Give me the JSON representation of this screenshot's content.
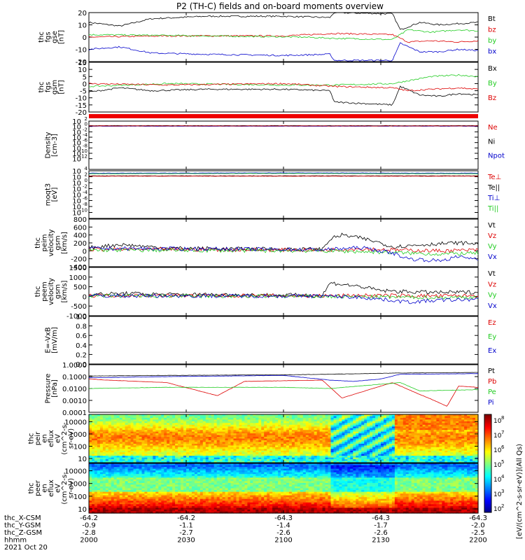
{
  "title": "P2 (TH-C) fields and on-board moments overview",
  "colors": {
    "black": "#000000",
    "red": "#dd0000",
    "green": "#22cc22",
    "blue": "#0000cc",
    "bar": "#ee0000"
  },
  "chart_data": [
    {
      "type": "line",
      "ylabel": "thc\nfgs\ngse\n[nT]",
      "ylim": [
        -20,
        20
      ],
      "ticks": [
        "20",
        "10",
        "0",
        "-10",
        "-20"
      ],
      "tick_values": [
        20,
        10,
        0,
        -10,
        -20
      ],
      "legend": [
        {
          "name": "Bt",
          "color": "black"
        },
        {
          "name": "bz",
          "color": "red"
        },
        {
          "name": "by",
          "color": "green"
        },
        {
          "name": "bx",
          "color": "blue"
        }
      ],
      "series": [
        {
          "name": "Bt",
          "color": "black",
          "x": [
            0,
            0.08,
            0.16,
            0.3,
            0.5,
            0.62,
            0.63,
            0.78,
            0.8,
            0.85,
            0.9,
            0.95,
            1
          ],
          "y": [
            12,
            9,
            15,
            17,
            17,
            16,
            20,
            19,
            6,
            12,
            10,
            11,
            12
          ]
        },
        {
          "name": "bz",
          "color": "red",
          "x": [
            0,
            0.2,
            0.5,
            0.63,
            0.78,
            0.82,
            0.88,
            0.95,
            1
          ],
          "y": [
            0,
            1,
            1,
            3,
            2,
            -4,
            -3,
            -4,
            -3
          ]
        },
        {
          "name": "by",
          "color": "green",
          "x": [
            0,
            0.3,
            0.55,
            0.63,
            0.78,
            0.82,
            0.88,
            0.95,
            1
          ],
          "y": [
            2,
            1,
            0,
            -1,
            -2,
            6,
            4,
            6,
            5
          ]
        },
        {
          "name": "bx",
          "color": "blue",
          "x": [
            0,
            0.08,
            0.16,
            0.3,
            0.5,
            0.62,
            0.63,
            0.78,
            0.8,
            0.85,
            0.9,
            0.95,
            1
          ],
          "y": [
            -10,
            -8,
            -13,
            -14,
            -15,
            -14,
            -19,
            -19,
            -5,
            -12,
            -12,
            -10,
            -11
          ]
        }
      ]
    },
    {
      "type": "line",
      "ylabel": "thc\nfgs\ngsm\n[nT]",
      "ylim": [
        -20,
        15
      ],
      "ticks": [
        "15",
        "10",
        "5",
        "0",
        "-5",
        "-10",
        "-15",
        "-20"
      ],
      "tick_values": [
        15,
        10,
        5,
        0,
        -5,
        -10,
        -15,
        -20
      ],
      "legend": [
        {
          "name": "Bx",
          "color": "black"
        },
        {
          "name": "By",
          "color": "green"
        },
        {
          "name": "Bz",
          "color": "red"
        }
      ],
      "series": [
        {
          "name": "Bx",
          "color": "black",
          "x": [
            0,
            0.08,
            0.16,
            0.3,
            0.5,
            0.62,
            0.63,
            0.78,
            0.8,
            0.85,
            0.9,
            0.95,
            1
          ],
          "y": [
            -6,
            -3,
            -5,
            -4,
            -4,
            -5,
            -13,
            -15,
            -2,
            -8,
            -9,
            -7,
            -8
          ]
        },
        {
          "name": "By",
          "color": "green",
          "x": [
            0,
            0.2,
            0.5,
            0.63,
            0.78,
            0.82,
            0.88,
            0.95,
            1
          ],
          "y": [
            -2,
            0,
            -1,
            -1,
            0,
            2,
            5,
            6,
            5
          ]
        },
        {
          "name": "Bz",
          "color": "red",
          "x": [
            0,
            0.2,
            0.5,
            0.63,
            0.78,
            0.82,
            0.88,
            0.95,
            1
          ],
          "y": [
            0,
            -1,
            0,
            -2,
            -3,
            -5,
            -4,
            -3,
            -4
          ]
        }
      ]
    },
    {
      "type": "line",
      "ylabel": "Density\n[cm-3]",
      "log": true,
      "ylim": [
        -16,
        2
      ],
      "ticks": [
        "10",
        "10",
        "10",
        "10",
        "10",
        "10",
        "10",
        "10"
      ],
      "exps": [
        "2",
        "0",
        "-2",
        "-4",
        "-6",
        "-8",
        "-10",
        "-12"
      ],
      "tick_values": [
        2,
        0,
        -2,
        -4,
        -6,
        -8,
        -10,
        -12
      ],
      "legend": [
        {
          "name": "Ne",
          "color": "red"
        },
        {
          "name": "Ni",
          "color": "black"
        },
        {
          "name": "Npot",
          "color": "blue"
        }
      ],
      "series": [
        {
          "name": "Ni",
          "color": "black",
          "x": [
            0,
            0.5,
            1
          ],
          "y": [
            0.3,
            0.3,
            0.3
          ]
        },
        {
          "name": "Npot",
          "color": "blue",
          "x": [
            0,
            0.5,
            1
          ],
          "y": [
            0.1,
            0.1,
            0.1
          ]
        },
        {
          "name": "Ne",
          "color": "red",
          "x": [
            0,
            0.5,
            1
          ],
          "y": [
            0.2,
            0.2,
            0.2
          ]
        }
      ]
    },
    {
      "type": "line",
      "ylabel": "moqt3\n[eV]",
      "log": true,
      "ylim": [
        -12,
        4
      ],
      "ticks": [
        "10",
        "10",
        "10",
        "10",
        "10",
        "10",
        "10",
        "10"
      ],
      "exps": [
        "4",
        "2",
        "0",
        "-2",
        "-4",
        "-6",
        "-8",
        "-10"
      ],
      "tick_values": [
        4,
        2,
        0,
        -2,
        -4,
        -6,
        -8,
        -10
      ],
      "legend": [
        {
          "name": "Te⊥",
          "color": "red"
        },
        {
          "name": "Te||",
          "color": "black"
        },
        {
          "name": "Ti⊥",
          "color": "blue"
        },
        {
          "name": "Ti||",
          "color": "green"
        }
      ],
      "series": [
        {
          "name": "Ti⊥",
          "color": "blue",
          "x": [
            0,
            0.5,
            1
          ],
          "y": [
            3.2,
            3.3,
            3.2
          ]
        },
        {
          "name": "Ti||",
          "color": "green",
          "x": [
            0,
            0.5,
            1
          ],
          "y": [
            3.0,
            3.1,
            3.0
          ]
        },
        {
          "name": "Te||",
          "color": "black",
          "x": [
            0,
            0.5,
            1
          ],
          "y": [
            2.3,
            2.3,
            2.3
          ]
        },
        {
          "name": "Te⊥",
          "color": "red",
          "x": [
            0,
            0.5,
            1
          ],
          "y": [
            2.2,
            2.2,
            2.2
          ]
        }
      ]
    },
    {
      "type": "line",
      "ylabel": "thc\npeim\nvelocity\ngsm\n[km/s]",
      "ylim": [
        -400,
        800
      ],
      "ticks": [
        "800",
        "600",
        "400",
        "200",
        "0",
        "-200",
        "-400"
      ],
      "tick_values": [
        800,
        600,
        400,
        200,
        0,
        -200,
        -400
      ],
      "legend": [
        {
          "name": "Vt",
          "color": "black"
        },
        {
          "name": "Vz",
          "color": "red"
        },
        {
          "name": "Vy",
          "color": "green"
        },
        {
          "name": "Vx",
          "color": "blue"
        }
      ],
      "series": [
        {
          "name": "Vt",
          "color": "black",
          "x": [
            0,
            0.08,
            0.2,
            0.4,
            0.6,
            0.62,
            0.65,
            0.7,
            0.75,
            0.78,
            0.85,
            0.9,
            0.95,
            1
          ],
          "y": [
            80,
            160,
            70,
            50,
            40,
            300,
            400,
            320,
            200,
            100,
            150,
            180,
            200,
            180
          ]
        },
        {
          "name": "Vz",
          "color": "red",
          "x": [
            0,
            0.3,
            0.6,
            0.7,
            0.8,
            0.9,
            1
          ],
          "y": [
            40,
            30,
            20,
            50,
            20,
            0,
            20
          ]
        },
        {
          "name": "Vy",
          "color": "green",
          "x": [
            0,
            0.3,
            0.6,
            0.7,
            0.8,
            0.9,
            1
          ],
          "y": [
            20,
            10,
            0,
            -20,
            -50,
            -80,
            -60
          ]
        },
        {
          "name": "Vx",
          "color": "blue",
          "x": [
            0,
            0.3,
            0.6,
            0.7,
            0.78,
            0.82,
            0.9,
            0.95,
            1
          ],
          "y": [
            60,
            50,
            30,
            80,
            -50,
            -200,
            -250,
            -150,
            -200
          ]
        }
      ]
    },
    {
      "type": "line",
      "ylabel": "thc\npeem\nvelocity\ngsm\n[km/s]",
      "ylim": [
        -1000,
        1500
      ],
      "ticks": [
        "1500",
        "1000",
        "500",
        "0",
        "-500",
        "-1000"
      ],
      "tick_values": [
        1500,
        1000,
        500,
        0,
        -500,
        -1000
      ],
      "legend": [
        {
          "name": "Vt",
          "color": "black"
        },
        {
          "name": "Vz",
          "color": "red"
        },
        {
          "name": "Vy",
          "color": "green"
        },
        {
          "name": "Vx",
          "color": "blue"
        }
      ],
      "series": [
        {
          "name": "Vt",
          "color": "black",
          "x": [
            0,
            0.1,
            0.2,
            0.4,
            0.6,
            0.62,
            0.66,
            0.7,
            0.75,
            0.8,
            0.9,
            1
          ],
          "y": [
            100,
            150,
            100,
            80,
            60,
            700,
            600,
            500,
            300,
            250,
            200,
            220
          ]
        },
        {
          "name": "Vz",
          "color": "red",
          "x": [
            0,
            0.3,
            0.6,
            0.7,
            0.8,
            0.9,
            1
          ],
          "y": [
            50,
            40,
            30,
            50,
            40,
            20,
            40
          ]
        },
        {
          "name": "Vy",
          "color": "green",
          "x": [
            0,
            0.3,
            0.6,
            0.7,
            0.8,
            0.9,
            1
          ],
          "y": [
            20,
            10,
            0,
            -20,
            -40,
            -60,
            -40
          ]
        },
        {
          "name": "Vx",
          "color": "blue",
          "x": [
            0,
            0.3,
            0.6,
            0.7,
            0.78,
            0.82,
            0.9,
            1
          ],
          "y": [
            30,
            30,
            20,
            -50,
            -200,
            -300,
            -200,
            -150
          ]
        }
      ]
    },
    {
      "type": "line",
      "ylabel": "E=-VxB\n[mV/m]",
      "ylim": [
        0,
        1
      ],
      "ticks": [
        "1.0",
        "0.8",
        "0.6",
        "0.4",
        "0.2",
        "0.0"
      ],
      "tick_values": [
        1,
        0.8,
        0.6,
        0.4,
        0.2,
        0
      ],
      "legend": [
        {
          "name": "Ez",
          "color": "red"
        },
        {
          "name": "Ey",
          "color": "green"
        },
        {
          "name": "Ex",
          "color": "blue"
        }
      ],
      "series": []
    },
    {
      "type": "line",
      "ylabel": "Pressure\n[nPa]",
      "log": true,
      "ylim": [
        -4,
        0
      ],
      "ticks": [
        "1.0000",
        "0.1000",
        "0.0100",
        "0.0010",
        "0.0001"
      ],
      "tick_values": [
        0,
        -1,
        -2,
        -3,
        -4
      ],
      "legend": [
        {
          "name": "Pt",
          "color": "black"
        },
        {
          "name": "Pb",
          "color": "red"
        },
        {
          "name": "Pe",
          "color": "green"
        },
        {
          "name": "Pi",
          "color": "blue"
        }
      ],
      "series": [
        {
          "name": "Pt",
          "color": "black",
          "x": [
            0,
            0.2,
            0.5,
            0.62,
            0.8,
            1
          ],
          "y": [
            -0.95,
            -0.9,
            -0.85,
            -0.8,
            -0.7,
            -0.65
          ]
        },
        {
          "name": "Pi",
          "color": "blue",
          "x": [
            0,
            0.2,
            0.5,
            0.62,
            0.68,
            0.75,
            0.8,
            1
          ],
          "y": [
            -1.1,
            -1.0,
            -0.9,
            -1.3,
            -1.4,
            -1.2,
            -0.8,
            -0.75
          ]
        },
        {
          "name": "Pb",
          "color": "red",
          "x": [
            0,
            0.05,
            0.2,
            0.33,
            0.4,
            0.6,
            0.65,
            0.78,
            0.85,
            0.88,
            0.92,
            0.95,
            1
          ],
          "y": [
            -1.2,
            -1.3,
            -1.5,
            -2.6,
            -1.4,
            -1.3,
            -2.8,
            -1.5,
            -2.5,
            -2.9,
            -3.5,
            -1.8,
            -1.9
          ]
        },
        {
          "name": "Pe",
          "color": "green",
          "x": [
            0,
            0.2,
            0.5,
            0.62,
            0.8,
            0.85,
            1
          ],
          "y": [
            -2.0,
            -1.9,
            -1.9,
            -2.0,
            -1.5,
            -2.2,
            -2.1
          ]
        }
      ]
    },
    {
      "type": "heatmap",
      "ylabel": "thc\npeir\nen\neflux\neV\n(cm^2-s-\nsr-eV)",
      "ticks": [
        "10000",
        "1000",
        "100",
        "10"
      ],
      "tick_values": [
        4,
        3,
        2,
        1
      ]
    },
    {
      "type": "heatmap",
      "ylabel": "thc\npeer\nen\neflux\neV\n(cm^2-s-\nsr-eV)",
      "ticks": [
        "10000",
        "1000",
        "100",
        "10"
      ],
      "tick_values": [
        4,
        3,
        2,
        1
      ]
    }
  ],
  "colorbar": {
    "ticks": [
      "10",
      "10",
      "10",
      "10",
      "10",
      "10",
      "10"
    ],
    "exps": [
      "8",
      "7",
      "6",
      "5",
      "4",
      "3",
      "2"
    ],
    "label": "[eV/(cm^2-s-sr-eV)](All Qs)"
  },
  "xaxis": {
    "rows": [
      {
        "name": "thc_X-CSM",
        "values": [
          "-64.2",
          "-64.2",
          "-64.3",
          "-64.3",
          "-64.3"
        ]
      },
      {
        "name": "thc_Y-GSM",
        "values": [
          "-0.9",
          "-1.1",
          "-1.4",
          "-1.7",
          "-2.0"
        ]
      },
      {
        "name": "thc_Z-GSM",
        "values": [
          "-2.8",
          "-2.7",
          "-2.6",
          "-2.6",
          "-2.5"
        ]
      },
      {
        "name": "hhmm",
        "values": [
          "2000",
          "2030",
          "2100",
          "2130",
          "2200"
        ]
      }
    ],
    "date": "2021 Oct 20"
  }
}
